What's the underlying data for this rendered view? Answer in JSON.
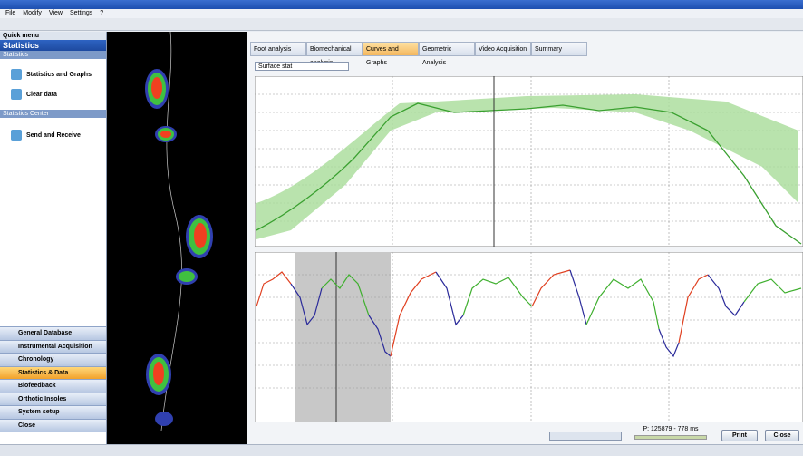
{
  "menu": [
    "File",
    "Modify",
    "View",
    "Settings",
    "?"
  ],
  "sidebar": {
    "header": "Quick menu",
    "title": "Statistics",
    "section1": "Statistics",
    "items1": [
      "Statistics and Graphs",
      "Clear data"
    ],
    "section2": "Statistics Center",
    "items2": [
      "Send and Receive"
    ],
    "nav": [
      "General Database",
      "Instrumental Acquisition",
      "Chronology",
      "Statistics & Data",
      "Biofeedback",
      "Orthotic Insoles",
      "System setup",
      "Close"
    ]
  },
  "tabs": [
    "Foot analysis",
    "Biomechanical analysis",
    "Curves and Graphs",
    "Geometric Analysis",
    "Video Acquisition",
    "Summary"
  ],
  "dropdown": "Surface stat",
  "playback": "P: 125879 - 778 ms",
  "buttons": [
    "Print",
    "Close"
  ]
}
